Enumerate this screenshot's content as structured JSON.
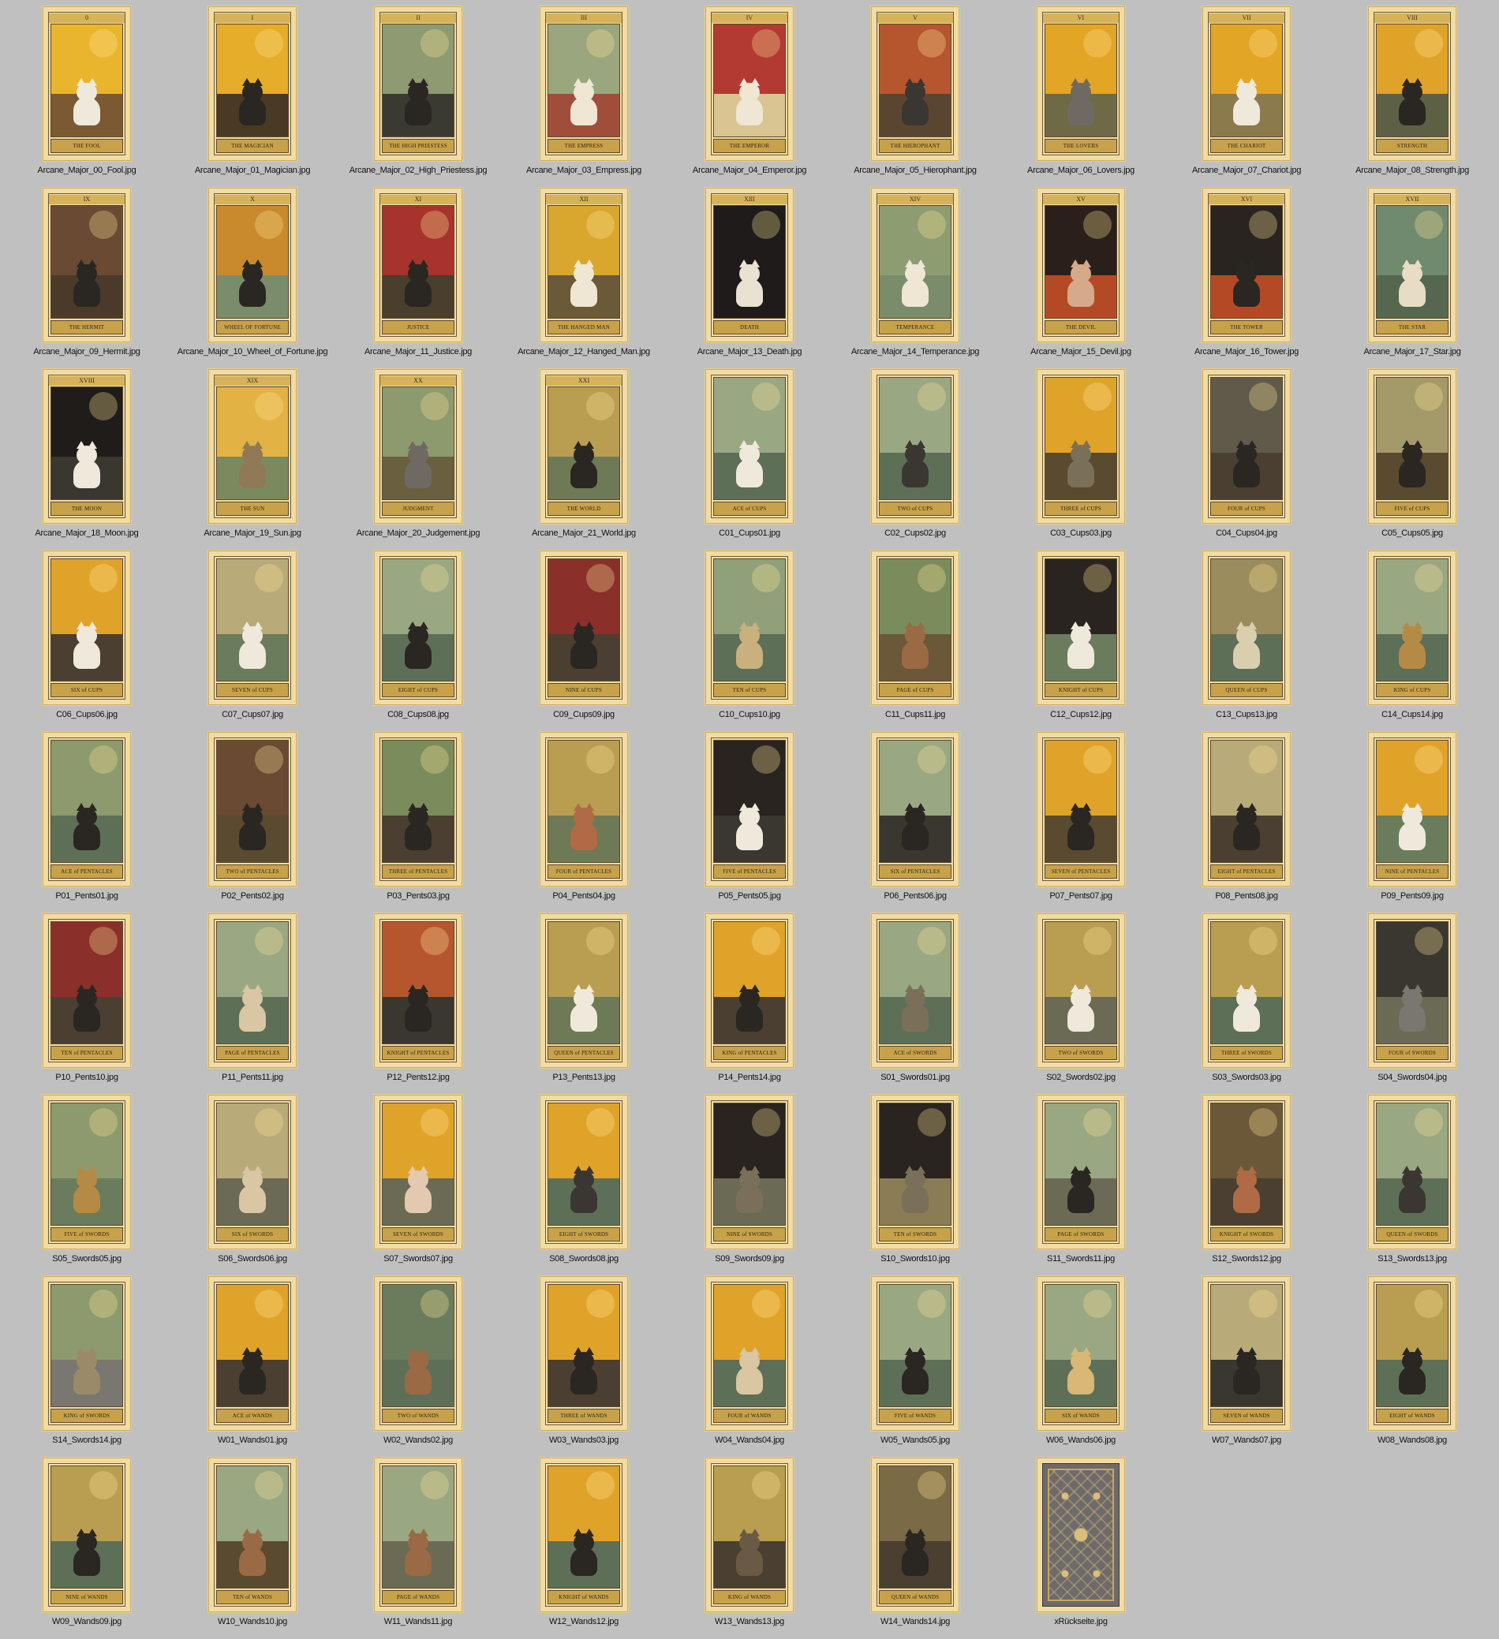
{
  "window": {
    "background": "#c0c0c0"
  },
  "files": [
    {
      "file": "Arcane_Major_00_Fool.jpg",
      "numeral": "0",
      "title": "THE FOOL",
      "sky": "#e9b52c",
      "ground": "#7b5a33",
      "cat": "#efe9dc"
    },
    {
      "file": "Arcane_Major_01_Magician.jpg",
      "numeral": "I",
      "title": "THE MAGICIAN",
      "sky": "#e6ad2a",
      "ground": "#4a3a24",
      "cat": "#2a2622"
    },
    {
      "file": "Arcane_Major_02_High_Priestess.jpg",
      "numeral": "II",
      "title": "THE HIGH PRIESTESS",
      "sky": "#8d9a72",
      "ground": "#3b3a32",
      "cat": "#2a2622"
    },
    {
      "file": "Arcane_Major_03_Empress.jpg",
      "numeral": "III",
      "title": "THE EMPRESS",
      "sky": "#9aa67e",
      "ground": "#a14d3c",
      "cat": "#efe6d3"
    },
    {
      "file": "Arcane_Major_04_Emperor.jpg",
      "numeral": "IV",
      "title": "THE EMPEROR",
      "sky": "#b23a32",
      "ground": "#d9c592",
      "cat": "#efe6d3"
    },
    {
      "file": "Arcane_Major_05_Hierophant.jpg",
      "numeral": "V",
      "title": "THE HIEROPHANT",
      "sky": "#b5562f",
      "ground": "#5a4630",
      "cat": "#3a3733"
    },
    {
      "file": "Arcane_Major_06_Lovers.jpg",
      "numeral": "VI",
      "title": "THE LOVERS",
      "sky": "#e3a525",
      "ground": "#6d6a45",
      "cat": "#6e6a63"
    },
    {
      "file": "Arcane_Major_07_Chariot.jpg",
      "numeral": "VII",
      "title": "THE CHARIOT",
      "sky": "#e3a525",
      "ground": "#8b7a4c",
      "cat": "#efe9dc"
    },
    {
      "file": "Arcane_Major_08_Strength.jpg",
      "numeral": "VIII",
      "title": "STRENGTH",
      "sky": "#e0a32a",
      "ground": "#5d6045",
      "cat": "#2a2622"
    },
    {
      "file": "Arcane_Major_09_Hermit.jpg",
      "numeral": "IX",
      "title": "THE HERMIT",
      "sky": "#6a4a33",
      "ground": "#4b3a2a",
      "cat": "#2a2622"
    },
    {
      "file": "Arcane_Major_10_Wheel_of_Fortune.jpg",
      "numeral": "X",
      "title": "WHEEL OF FORTUNE",
      "sky": "#c88a2c",
      "ground": "#7a8c6a",
      "cat": "#2a2622"
    },
    {
      "file": "Arcane_Major_11_Justice.jpg",
      "numeral": "XI",
      "title": "JUSTICE",
      "sky": "#a6332c",
      "ground": "#4a3f2c",
      "cat": "#2a2622"
    },
    {
      "file": "Arcane_Major_12_Hanged_Man.jpg",
      "numeral": "XII",
      "title": "THE HANGED MAN",
      "sky": "#d9a62e",
      "ground": "#6a5a38",
      "cat": "#efe6d3"
    },
    {
      "file": "Arcane_Major_13_Death.jpg",
      "numeral": "XIII",
      "title": "DEATH",
      "sky": "#1e1b1a",
      "ground": "#1e1b1a",
      "cat": "#e9e2d2"
    },
    {
      "file": "Arcane_Major_14_Temperance.jpg",
      "numeral": "XIV",
      "title": "TEMPERANCE",
      "sky": "#8e9c72",
      "ground": "#7a8c6a",
      "cat": "#efe6d3"
    },
    {
      "file": "Arcane_Major_15_Devil.jpg",
      "numeral": "XV",
      "title": "THE DEVIL",
      "sky": "#2a1f1b",
      "ground": "#b44a25",
      "cat": "#d6a98a"
    },
    {
      "file": "Arcane_Major_16_Tower.jpg",
      "numeral": "XVI",
      "title": "THE TOWER",
      "sky": "#2a2420",
      "ground": "#b44a25",
      "cat": "#2a2622"
    },
    {
      "file": "Arcane_Major_17_Star.jpg",
      "numeral": "XVII",
      "title": "THE STAR",
      "sky": "#6f8a6e",
      "ground": "#55674f",
      "cat": "#e7dcc4"
    },
    {
      "file": "Arcane_Major_18_Moon.jpg",
      "numeral": "XVIII",
      "title": "THE MOON",
      "sky": "#1f1c1a",
      "ground": "#3a3630",
      "cat": "#efe9dc"
    },
    {
      "file": "Arcane_Major_19_Sun.jpg",
      "numeral": "XIX",
      "title": "THE SUN",
      "sky": "#e3b245",
      "ground": "#7b8a5e",
      "cat": "#8f7a55"
    },
    {
      "file": "Arcane_Major_20_Judgement.jpg",
      "numeral": "XX",
      "title": "JUDGMENT",
      "sky": "#8c9a6e",
      "ground": "#6a6040",
      "cat": "#6e6a63"
    },
    {
      "file": "Arcane_Major_21_World.jpg",
      "numeral": "XXI",
      "title": "THE WORLD",
      "sky": "#b99e52",
      "ground": "#6d7a55",
      "cat": "#2a2622"
    },
    {
      "file": "C01_Cups01.jpg",
      "numeral": "",
      "title": "ACE of CUPS",
      "sky": "#9aa783",
      "ground": "#5e6f58",
      "cat": "#efe9dc"
    },
    {
      "file": "C02_Cups02.jpg",
      "numeral": "",
      "title": "TWO of CUPS",
      "sky": "#9aa783",
      "ground": "#5e6f58",
      "cat": "#3a3733"
    },
    {
      "file": "C03_Cups03.jpg",
      "numeral": "",
      "title": "THREE of CUPS",
      "sky": "#e0a32a",
      "ground": "#5a4a30",
      "cat": "#7a705a"
    },
    {
      "file": "C04_Cups04.jpg",
      "numeral": "",
      "title": "FOUR of CUPS",
      "sky": "#5f5a4a",
      "ground": "#4a3f30",
      "cat": "#2a2622"
    },
    {
      "file": "C05_Cups05.jpg",
      "numeral": "",
      "title": "FIVE of CUPS",
      "sky": "#a49968",
      "ground": "#5a4a30",
      "cat": "#2a2622"
    },
    {
      "file": "C06_Cups06.jpg",
      "numeral": "",
      "title": "SIX of CUPS",
      "sky": "#e0a32a",
      "ground": "#4a3f30",
      "cat": "#efe9dc"
    },
    {
      "file": "C07_Cups07.jpg",
      "numeral": "",
      "title": "SEVEN of CUPS",
      "sky": "#b9aa7a",
      "ground": "#6a7c5c",
      "cat": "#efe9dc"
    },
    {
      "file": "C08_Cups08.jpg",
      "numeral": "",
      "title": "EIGHT of CUPS",
      "sky": "#9aa783",
      "ground": "#5e6f58",
      "cat": "#2a2622"
    },
    {
      "file": "C09_Cups09.jpg",
      "numeral": "",
      "title": "NINE of CUPS",
      "sky": "#8a2f2a",
      "ground": "#4a3f30",
      "cat": "#2a2622"
    },
    {
      "file": "C10_Cups10.jpg",
      "numeral": "",
      "title": "TEN of CUPS",
      "sky": "#8fa07a",
      "ground": "#5e6f58",
      "cat": "#c9b07c"
    },
    {
      "file": "C11_Cups11.jpg",
      "numeral": "",
      "title": "PAGE of CUPS",
      "sky": "#7a8c5c",
      "ground": "#6a5838",
      "cat": "#9a6a45"
    },
    {
      "file": "C12_Cups12.jpg",
      "numeral": "",
      "title": "KNIGHT of CUPS",
      "sky": "#2a2420",
      "ground": "#6a7c5c",
      "cat": "#efe9dc"
    },
    {
      "file": "C13_Cups13.jpg",
      "numeral": "",
      "title": "QUEEN of CUPS",
      "sky": "#9a8c5c",
      "ground": "#5e6f58",
      "cat": "#d9cfae"
    },
    {
      "file": "C14_Cups14.jpg",
      "numeral": "",
      "title": "KING of CUPS",
      "sky": "#9aa783",
      "ground": "#5e6f58",
      "cat": "#b58a45"
    },
    {
      "file": "P01_Pents01.jpg",
      "numeral": "",
      "title": "ACE of PENTACLES",
      "sky": "#8c9a6e",
      "ground": "#5e6f58",
      "cat": "#2a2622"
    },
    {
      "file": "P02_Pents02.jpg",
      "numeral": "",
      "title": "TWO of PENTACLES",
      "sky": "#6a4a33",
      "ground": "#5a4a30",
      "cat": "#2a2622"
    },
    {
      "file": "P03_Pents03.jpg",
      "numeral": "",
      "title": "THREE of PENTACLES",
      "sky": "#7a8c5c",
      "ground": "#4a3f30",
      "cat": "#2a2622"
    },
    {
      "file": "P04_Pents04.jpg",
      "numeral": "",
      "title": "FOUR of PENTACLES",
      "sky": "#b99e52",
      "ground": "#6d7a55",
      "cat": "#b06a45"
    },
    {
      "file": "P05_Pents05.jpg",
      "numeral": "",
      "title": "FIVE of PENTACLES",
      "sky": "#2a2420",
      "ground": "#3a3630",
      "cat": "#efe9dc"
    },
    {
      "file": "P06_Pents06.jpg",
      "numeral": "",
      "title": "SIX of PENTACLES",
      "sky": "#9aa783",
      "ground": "#3a3630",
      "cat": "#2a2622"
    },
    {
      "file": "P07_Pents07.jpg",
      "numeral": "",
      "title": "SEVEN of PENTACLES",
      "sky": "#e0a32a",
      "ground": "#5a4a30",
      "cat": "#2a2622"
    },
    {
      "file": "P08_Pents08.jpg",
      "numeral": "",
      "title": "EIGHT of PENTACLES",
      "sky": "#b9aa7a",
      "ground": "#4a3f30",
      "cat": "#2a2622"
    },
    {
      "file": "P09_Pents09.jpg",
      "numeral": "",
      "title": "NINE of PENTACLES",
      "sky": "#e0a32a",
      "ground": "#6a7c5c",
      "cat": "#efe9dc"
    },
    {
      "file": "P10_Pents10.jpg",
      "numeral": "",
      "title": "TEN of PENTACLES",
      "sky": "#8a2f2a",
      "ground": "#4a3f30",
      "cat": "#2a2622"
    },
    {
      "file": "P11_Pents11.jpg",
      "numeral": "",
      "title": "PAGE of PENTACLES",
      "sky": "#9aa783",
      "ground": "#5e6f58",
      "cat": "#d9c6a2"
    },
    {
      "file": "P12_Pents12.jpg",
      "numeral": "",
      "title": "KNIGHT of PENTACLES",
      "sky": "#b5562f",
      "ground": "#3a3630",
      "cat": "#2a2622"
    },
    {
      "file": "P13_Pents13.jpg",
      "numeral": "",
      "title": "QUEEN of PENTACLES",
      "sky": "#b99e52",
      "ground": "#6d7a55",
      "cat": "#efe9dc"
    },
    {
      "file": "P14_Pents14.jpg",
      "numeral": "",
      "title": "KING of PENTACLES",
      "sky": "#e0a32a",
      "ground": "#4a3f30",
      "cat": "#2a2622"
    },
    {
      "file": "S01_Swords01.jpg",
      "numeral": "",
      "title": "ACE of SWORDS",
      "sky": "#9aa783",
      "ground": "#5e6f58",
      "cat": "#7a705a"
    },
    {
      "file": "S02_Swords02.jpg",
      "numeral": "",
      "title": "TWO of SWORDS",
      "sky": "#b99e52",
      "ground": "#6a6a55",
      "cat": "#efe9dc"
    },
    {
      "file": "S03_Swords03.jpg",
      "numeral": "",
      "title": "THREE of SWORDS",
      "sky": "#b99e52",
      "ground": "#5e6f58",
      "cat": "#efe9dc"
    },
    {
      "file": "S04_Swords04.jpg",
      "numeral": "",
      "title": "FOUR of SWORDS",
      "sky": "#3a3630",
      "ground": "#6a6a55",
      "cat": "#7a7670"
    },
    {
      "file": "S05_Swords05.jpg",
      "numeral": "",
      "title": "FIVE of SWORDS",
      "sky": "#8c9a6e",
      "ground": "#6a7c5c",
      "cat": "#b58a45"
    },
    {
      "file": "S06_Swords06.jpg",
      "numeral": "",
      "title": "SIX of SWORDS",
      "sky": "#b9aa7a",
      "ground": "#6a6a55",
      "cat": "#d9c6a2"
    },
    {
      "file": "S07_Swords07.jpg",
      "numeral": "",
      "title": "SEVEN of SWORDS",
      "sky": "#e0a32a",
      "ground": "#6a6a55",
      "cat": "#e2c9b0"
    },
    {
      "file": "S08_Swords08.jpg",
      "numeral": "",
      "title": "EIGHT of SWORDS",
      "sky": "#e0a32a",
      "ground": "#5e6f58",
      "cat": "#3a3733"
    },
    {
      "file": "S09_Swords09.jpg",
      "numeral": "",
      "title": "NINE of SWORDS",
      "sky": "#2a2420",
      "ground": "#6a6a55",
      "cat": "#7a705a"
    },
    {
      "file": "S10_Swords10.jpg",
      "numeral": "",
      "title": "TEN of SWORDS",
      "sky": "#2a2420",
      "ground": "#8a7c55",
      "cat": "#7a705a"
    },
    {
      "file": "S11_Swords11.jpg",
      "numeral": "",
      "title": "PAGE of SWORDS",
      "sky": "#9aa783",
      "ground": "#6a6a55",
      "cat": "#2a2622"
    },
    {
      "file": "S12_Swords12.jpg",
      "numeral": "",
      "title": "KNIGHT of SWORDS",
      "sky": "#6a5838",
      "ground": "#4a3f30",
      "cat": "#b06a45"
    },
    {
      "file": "S13_Swords13.jpg",
      "numeral": "",
      "title": "QUEEN of SWORDS",
      "sky": "#9aa783",
      "ground": "#5e6f58",
      "cat": "#3a3733"
    },
    {
      "file": "S14_Swords14.jpg",
      "numeral": "",
      "title": "KING of SWORDS",
      "sky": "#8c9a6e",
      "ground": "#7a7670",
      "cat": "#9a8a6a"
    },
    {
      "file": "W01_Wands01.jpg",
      "numeral": "",
      "title": "ACE of WANDS",
      "sky": "#e0a32a",
      "ground": "#4a3f30",
      "cat": "#2a2622"
    },
    {
      "file": "W02_Wands02.jpg",
      "numeral": "",
      "title": "TWO of WANDS",
      "sky": "#6a7c5c",
      "ground": "#5e6f58",
      "cat": "#9a6a45"
    },
    {
      "file": "W03_Wands03.jpg",
      "numeral": "",
      "title": "THREE of WANDS",
      "sky": "#e0a32a",
      "ground": "#4a3f30",
      "cat": "#2a2622"
    },
    {
      "file": "W04_Wands04.jpg",
      "numeral": "",
      "title": "FOUR of WANDS",
      "sky": "#e0a32a",
      "ground": "#5e6f58",
      "cat": "#d9c6a2"
    },
    {
      "file": "W05_Wands05.jpg",
      "numeral": "",
      "title": "FIVE of WANDS",
      "sky": "#9aa783",
      "ground": "#5e6f58",
      "cat": "#2a2622"
    },
    {
      "file": "W06_Wands06.jpg",
      "numeral": "",
      "title": "SIX of WANDS",
      "sky": "#9aa783",
      "ground": "#5e6f58",
      "cat": "#d9b877"
    },
    {
      "file": "W07_Wands07.jpg",
      "numeral": "",
      "title": "SEVEN of WANDS",
      "sky": "#b9aa7a",
      "ground": "#3a3630",
      "cat": "#2a2622"
    },
    {
      "file": "W08_Wands08.jpg",
      "numeral": "",
      "title": "EIGHT of WANDS",
      "sky": "#b99e52",
      "ground": "#5e6f58",
      "cat": "#2a2622"
    },
    {
      "file": "W09_Wands09.jpg",
      "numeral": "",
      "title": "NINE of WANDS",
      "sky": "#b99e52",
      "ground": "#5e6f58",
      "cat": "#2a2622"
    },
    {
      "file": "W10_Wands10.jpg",
      "numeral": "",
      "title": "TEN of WANDS",
      "sky": "#9aa783",
      "ground": "#5a4a30",
      "cat": "#9a6a45"
    },
    {
      "file": "W11_Wands11.jpg",
      "numeral": "",
      "title": "PAGE of WANDS",
      "sky": "#9aa783",
      "ground": "#6a6a55",
      "cat": "#9a6a45"
    },
    {
      "file": "W12_Wands12.jpg",
      "numeral": "",
      "title": "KNIGHT of WANDS",
      "sky": "#e0a32a",
      "ground": "#5e6f58",
      "cat": "#2a2622"
    },
    {
      "file": "W13_Wands13.jpg",
      "numeral": "",
      "title": "KING of WANDS",
      "sky": "#b99e52",
      "ground": "#4a3f30",
      "cat": "#6a5a45"
    },
    {
      "file": "W14_Wands14.jpg",
      "numeral": "",
      "title": "QUEEN of WANDS",
      "sky": "#7a6a45",
      "ground": "#4a3f30",
      "cat": "#2a2622"
    },
    {
      "file": "xRückseite.jpg",
      "numeral": "",
      "title": "",
      "back": true,
      "sky": "#6e6a6a",
      "ground": "#6e6a6a",
      "cat": "#6e6a6a"
    }
  ]
}
